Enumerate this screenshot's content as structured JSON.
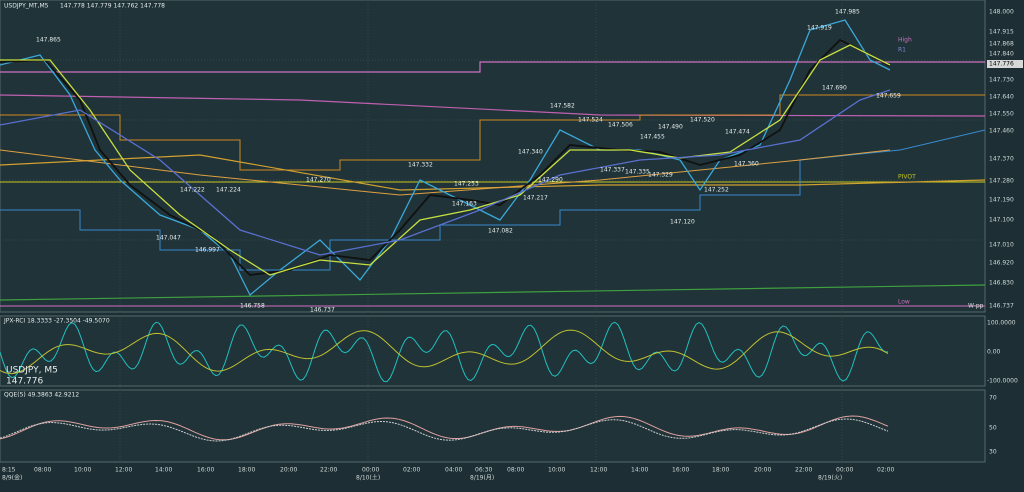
{
  "main": {
    "symbol": "USDJPY_MT,M5",
    "ohlc": "147.778 147.779 147.762 147.778",
    "labels": [
      "147.865",
      "147.222",
      "147.224",
      "147.270",
      "147.332",
      "147.253",
      "147.163",
      "147.217",
      "147.082",
      "147.047",
      "146.997",
      "146.758",
      "146.737",
      "147.582",
      "147.524",
      "147.506",
      "147.455",
      "147.490",
      "147.520",
      "147.474",
      "147.340",
      "147.290",
      "147.337",
      "147.335",
      "147.329",
      "147.360",
      "147.252",
      "147.120",
      "147.919",
      "147.985",
      "147.690",
      "147.659"
    ],
    "side_labels": [
      "High",
      "R1",
      "PIVOT",
      "Low",
      "W-pp"
    ],
    "price_axis": [
      "148.000",
      "147.915",
      "147.868",
      "147.840",
      "147.776",
      "147.730",
      "147.640",
      "147.550",
      "147.460",
      "147.370",
      "147.280",
      "147.190",
      "147.100",
      "147.010",
      "146.920",
      "146.830",
      "146.737"
    ]
  },
  "rci": {
    "title": "JPX-RCI 18.3333 -27.3504 -49.5070",
    "symbol": "USDJPY, M5",
    "price": "147.776",
    "axis": [
      "100.0000",
      "0.00",
      "-100.0000"
    ]
  },
  "qqe": {
    "title": "QQE(5) 49.3863 42.9212",
    "axis": [
      "70",
      "50",
      "30"
    ]
  },
  "time_axis": [
    "8:15",
    "08:00",
    "10:00",
    "12:00",
    "14:00",
    "16:00",
    "18:00",
    "20:00",
    "22:00",
    "00:00",
    "02:00",
    "04:00",
    "06:30",
    "08:00",
    "10:00",
    "12:00",
    "14:00",
    "16:00",
    "18:00",
    "20:00",
    "22:00",
    "00:00",
    "02:00"
  ],
  "dates": [
    "8/9(金)",
    "8/10(土)",
    "8/19(月)",
    "8/19(火)"
  ]
}
